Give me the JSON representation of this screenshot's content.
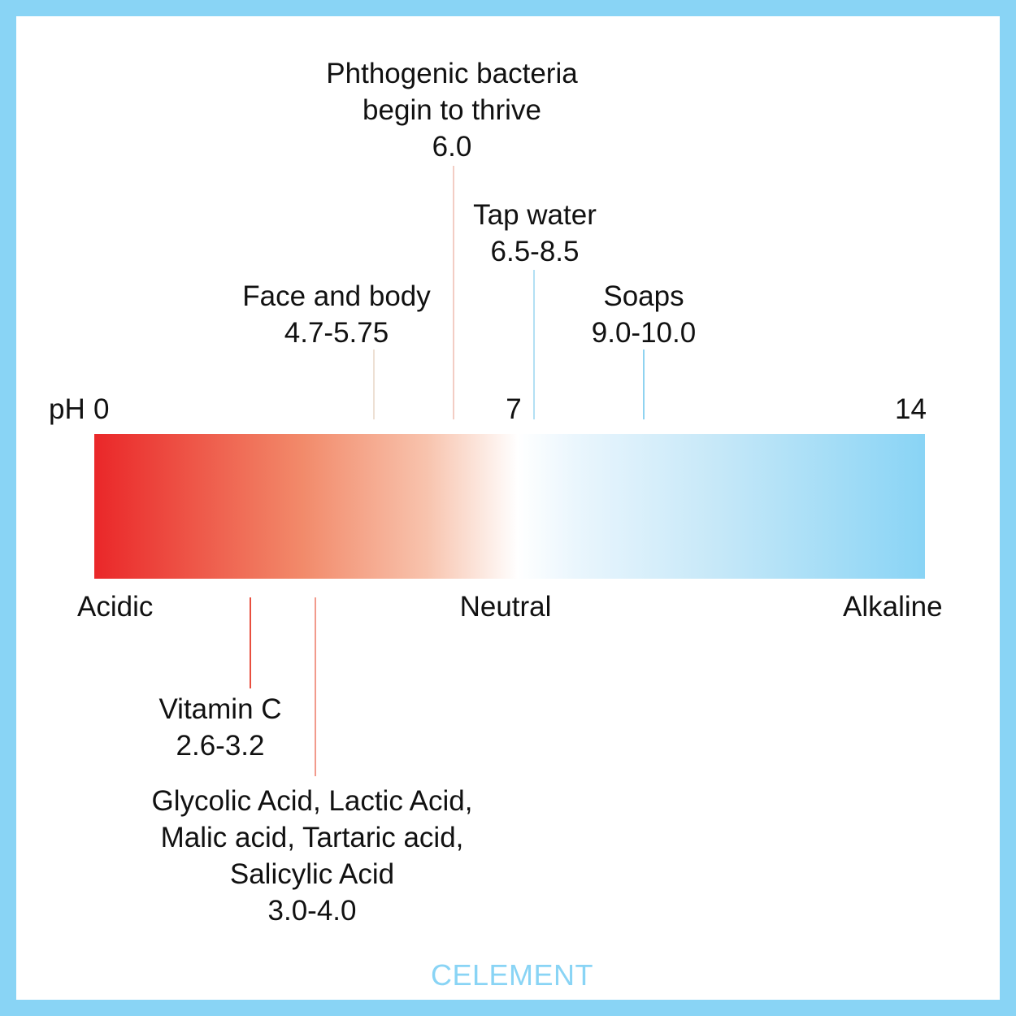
{
  "scale": {
    "label": "pH",
    "ticks": {
      "min": "0",
      "mid": "7",
      "max": "14"
    },
    "categories": {
      "acidic": "Acidic",
      "neutral": "Neutral",
      "alkaline": "Alkaline"
    },
    "colors": {
      "acidic": "#ea2729",
      "neutral": "#ffffff",
      "alkaline": "#89d4f5"
    }
  },
  "callouts_above": [
    {
      "lines": [
        "Phthogenic bacteria",
        "begin to thrive"
      ],
      "value": "6.0",
      "color": "#f3cdc4"
    },
    {
      "lines": [
        "Tap water"
      ],
      "value": "6.5-8.5",
      "color": "#b3e0f4"
    },
    {
      "lines": [
        "Face and body"
      ],
      "value": "4.7-5.75",
      "color": "#ede0d4"
    },
    {
      "lines": [
        "Soaps"
      ],
      "value": "9.0-10.0",
      "color": "#8fd3f0"
    }
  ],
  "callouts_below": [
    {
      "lines": [
        "Vitamin C"
      ],
      "value": "2.6-3.2",
      "color": "#e84f3f"
    },
    {
      "lines": [
        "Glycolic Acid, Lactic Acid,",
        "Malic acid, Tartaric acid,",
        "Salicylic Acid"
      ],
      "value": "3.0-4.0",
      "color": "#f19a8c"
    }
  ],
  "brand": {
    "name": "CELEMENT",
    "color": "#89d4f5"
  },
  "frame_color": "#89d4f5"
}
